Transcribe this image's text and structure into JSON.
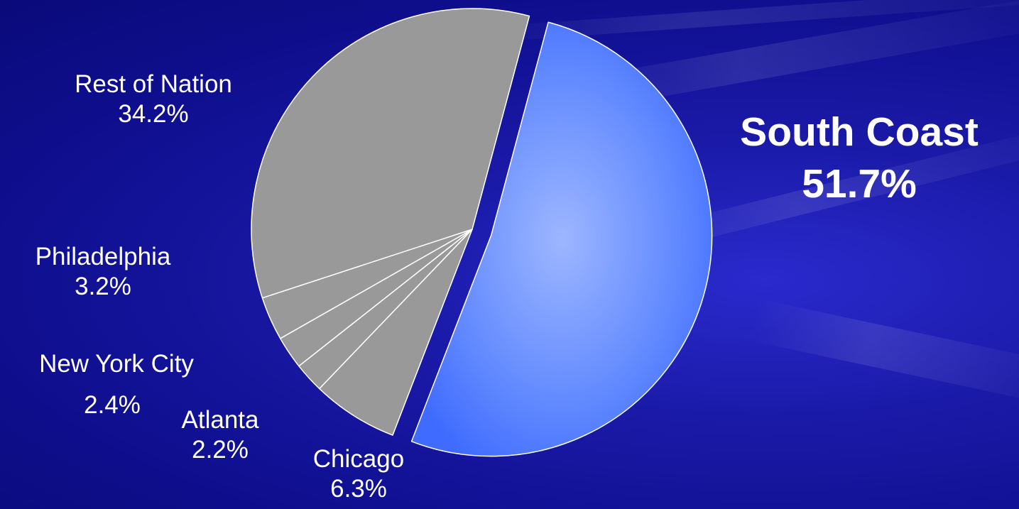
{
  "chart_data": {
    "type": "pie",
    "title": "",
    "slices": [
      {
        "label": "South Coast",
        "value": 51.7,
        "display": "51.7%",
        "color": "#4d7bff",
        "exploded": true,
        "emphasis": true
      },
      {
        "label": "Chicago",
        "value": 6.3,
        "display": "6.3%",
        "color": "#999999"
      },
      {
        "label": "Atlanta",
        "value": 2.2,
        "display": "2.2%",
        "color": "#999999"
      },
      {
        "label": "New York City",
        "value": 2.4,
        "display": "2.4%",
        "color": "#999999"
      },
      {
        "label": "Philadelphia",
        "value": 3.2,
        "display": "3.2%",
        "color": "#999999"
      },
      {
        "label": "Rest of Nation",
        "value": 34.2,
        "display": "34.2%",
        "color": "#999999"
      }
    ]
  },
  "colors": {
    "background": "#12129a",
    "highlight": "#4d7bff",
    "other": "#999999",
    "outline": "#ffffff",
    "text": "#ffffff"
  }
}
